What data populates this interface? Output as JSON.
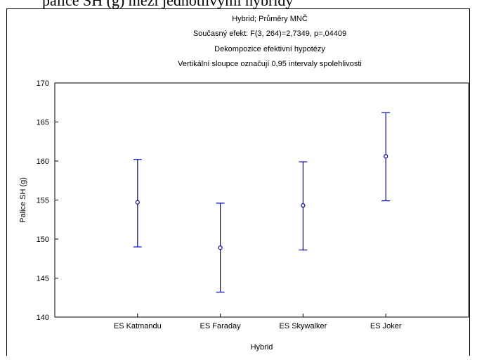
{
  "caption_fragment": "palice SH (g) mezi jednotlivými hybridy",
  "chart_data": {
    "type": "scatter",
    "title": [
      "Hybrid; Průměry MNČ",
      "Současný efekt: F(3, 264)=2,7349, p=,04409",
      "Dekompozice efektivní hypotézy",
      "Vertikální sloupce označují 0,95 intervaly spolehlivosti"
    ],
    "xlabel": "Hybrid",
    "ylabel": "Palice SH (g)",
    "ylim": [
      140,
      170
    ],
    "yticks": [
      140,
      145,
      150,
      155,
      160,
      165,
      170
    ],
    "categories": [
      "ES Katmandu",
      "ES Faraday",
      "ES Skywalker",
      "ES Joker"
    ],
    "values": [
      154.7,
      148.9,
      154.3,
      160.6
    ],
    "ci_lower": [
      149.0,
      143.2,
      148.6,
      154.9
    ],
    "ci_upper": [
      160.2,
      154.6,
      159.9,
      166.2
    ],
    "grid": false,
    "marker_color": "#0000cc"
  }
}
